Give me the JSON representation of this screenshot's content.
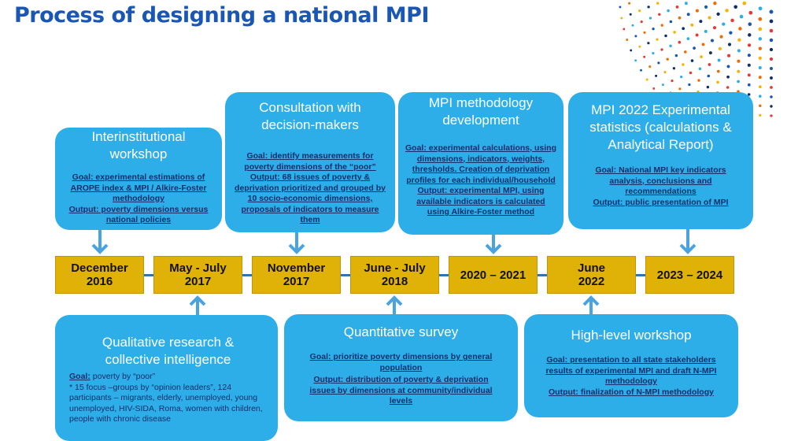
{
  "title": "Process of designing a national MPI",
  "timeline": [
    "December\n2016",
    "May - July\n2017",
    "November\n2017",
    "June - July\n2018",
    "2020 – 2021",
    "June\n2022",
    "2023 – 2024"
  ],
  "cards": {
    "interinstitutional": {
      "title": "Interinstitutional workshop",
      "body": "Goal: experimental estimations of AROPE index & MPI / Alkire-Foster methodology\nOutput: poverty dimensions versus national policies"
    },
    "consultation": {
      "title": "Consultation with decision-makers",
      "body": "Goal:  identify measurements for poverty dimensions of the “poor”\nOutput: 68 issues of poverty & deprivation prioritized and grouped by 10 socio-economic dimensions, proposals of indicators to measure them"
    },
    "methodology": {
      "title": "MPI  methodology development",
      "body": "Goal:  experimental calculations, using dimensions, indicators, weights, thresholds. Creation of deprivation profiles for each individual/household\nOutput: experimental MPI, using available indicators is calculated using Alkire-Foster method"
    },
    "experimental": {
      "title": "MPI 2022 Experimental statistics (calculations & Analytical Report)",
      "body": "Goal: National MPI key indicators analysis, conclusions and recommendations\nOutput: public presentation of MPI"
    },
    "qualitative": {
      "title": "Qualitative research & collective intelligence",
      "goal_label": "Goal:",
      "goal_text": " poverty by “poor”",
      "detail": "* 15 focus –groups by “opinion leaders”, 124 participants – migrants, elderly, unemployed, young  unemployed, HIV-SIDA, Roma, women with children, people with chronic disease"
    },
    "quantitative": {
      "title": "Quantitative survey",
      "body": "Goal:  prioritize poverty dimensions by general population\nOutput: distribution of poverty & deprivation issues by dimensions at community/individual levels"
    },
    "highlevel": {
      "title": "High-level workshop",
      "body": "Goal: presentation to all state stakeholders results of experimental MPI and draft N-MPI methodology\nOutput: finalization of N-MPI methodology"
    }
  },
  "colors": {
    "title": "#1a57b4",
    "card": "#2eaee9",
    "card_text_dark": "#0f2f6a",
    "timeline_box": "#e0b106",
    "timeline_line": "#2e75b6",
    "arrow": "#4aa3df"
  }
}
